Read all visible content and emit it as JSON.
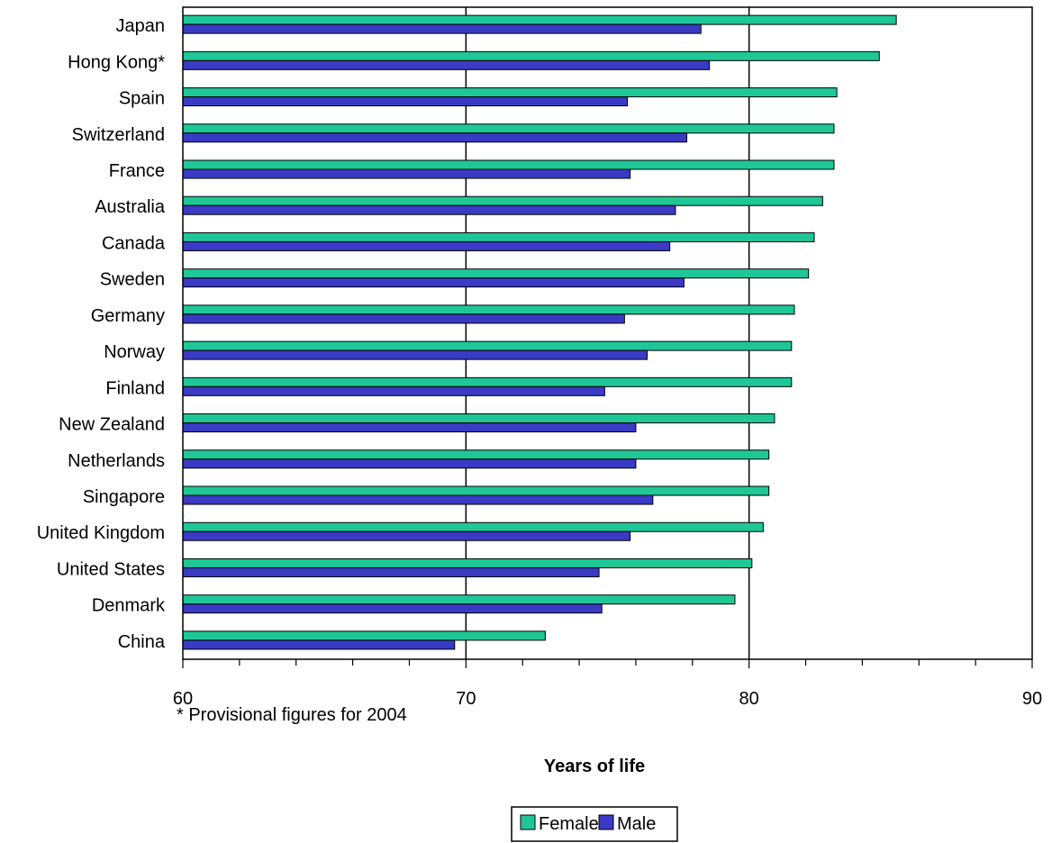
{
  "chart_data": {
    "type": "bar",
    "orientation": "horizontal",
    "categories": [
      "Japan",
      "Hong Kong*",
      "Spain",
      "Switzerland",
      "France",
      "Australia",
      "Canada",
      "Sweden",
      "Germany",
      "Norway",
      "Finland",
      "New Zealand",
      "Netherlands",
      "Singapore",
      "United Kingdom",
      "United States",
      "Denmark",
      "China"
    ],
    "series": [
      {
        "name": "Female",
        "color": "#1fc797",
        "values": [
          85.2,
          84.6,
          83.1,
          83.0,
          83.0,
          82.6,
          82.3,
          82.1,
          81.6,
          81.5,
          81.5,
          80.9,
          80.7,
          80.7,
          80.5,
          80.1,
          79.5,
          72.8
        ]
      },
      {
        "name": "Male",
        "color": "#3a3ac4",
        "values": [
          78.3,
          78.6,
          75.7,
          77.8,
          75.8,
          77.4,
          77.2,
          77.7,
          75.6,
          76.4,
          74.9,
          76.0,
          76.0,
          76.6,
          75.8,
          74.7,
          74.8,
          69.6
        ]
      }
    ],
    "xlim": [
      60,
      90
    ],
    "xticks": [
      "60",
      "70",
      "80",
      "90"
    ],
    "xlabel": "Years of life",
    "footnote": "* Provisional figures for 2004",
    "grid": "vertical major gridlines",
    "legend": "bottom-center"
  }
}
